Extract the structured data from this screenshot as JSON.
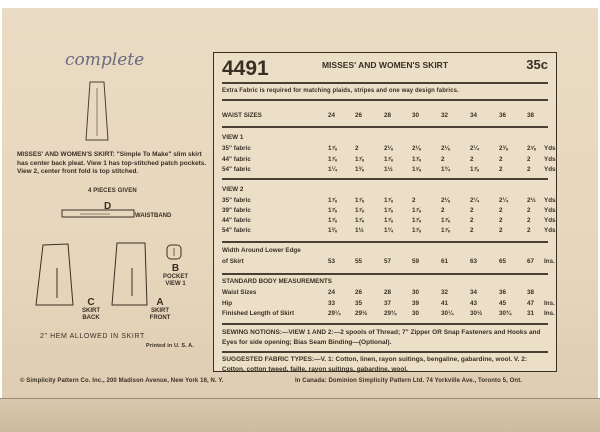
{
  "handwriting": "complete",
  "description": "MISSES' AND WOMEN'S SKIRT: \"Simple To Make\" slim skirt has center back pleat. View 1 has top-stitched patch pockets. View 2, center front fold is top stitched.",
  "pieces_given": "4 PIECES GIVEN",
  "pieces": [
    {
      "letter": "D",
      "name": "WAISTBAND"
    },
    {
      "letter": "B",
      "name": "POCKET VIEW 1"
    },
    {
      "letter": "C",
      "name": "SKIRT BACK"
    },
    {
      "letter": "A",
      "name": "SKIRT FRONT"
    }
  ],
  "hem_note": "2\" HEM ALLOWED IN SKIRT",
  "printed": "Printed in U. S. A.",
  "header": {
    "number": "4491",
    "title": "MISSES' AND WOMEN'S SKIRT",
    "price": "35c"
  },
  "extra_fabric": "Extra Fabric is required for matching plaids, stripes and one way design fabrics.",
  "sizes_label": "WAIST SIZES",
  "sizes": [
    "24",
    "26",
    "28",
    "30",
    "32",
    "34",
    "36",
    "38"
  ],
  "view1": {
    "label": "VIEW 1",
    "rows": [
      {
        "label": "35\" fabric",
        "values": [
          "1⅞",
          "2",
          "2⅛",
          "2⅛",
          "2⅛",
          "2¼",
          "2⅜",
          "2⅝"
        ],
        "unit": "Yds"
      },
      {
        "label": "44\" fabric",
        "values": [
          "1⅞",
          "1⅞",
          "1⅞",
          "1⅞",
          "2",
          "2",
          "2",
          "2"
        ],
        "unit": "Yds"
      },
      {
        "label": "54\" fabric",
        "values": [
          "1¼",
          "1⅜",
          "1½",
          "1⅝",
          "1¾",
          "1⅞",
          "2",
          "2"
        ],
        "unit": "Yds"
      }
    ]
  },
  "view2": {
    "label": "VIEW 2",
    "rows": [
      {
        "label": "35\" fabric",
        "values": [
          "1⅞",
          "1⅞",
          "1⅞",
          "2",
          "2⅛",
          "2¼",
          "2¼",
          "2½"
        ],
        "unit": "Yds."
      },
      {
        "label": "39\" fabric",
        "values": [
          "1⅞",
          "1⅞",
          "1⅞",
          "1⅞",
          "2",
          "2",
          "2",
          "2"
        ],
        "unit": "Yds."
      },
      {
        "label": "44\" fabric",
        "values": [
          "1⅞",
          "1⅞",
          "1⅞",
          "1⅞",
          "1⅞",
          "2",
          "2",
          "2"
        ],
        "unit": "Yds."
      },
      {
        "label": "54\" fabric",
        "values": [
          "1⅜",
          "1½",
          "1¾",
          "1⅞",
          "1⅞",
          "2",
          "2",
          "2"
        ],
        "unit": "Yds."
      }
    ]
  },
  "width": {
    "label1": "Width Around Lower Edge",
    "label2": "of Skirt",
    "values": [
      "53",
      "55",
      "57",
      "59",
      "61",
      "63",
      "65",
      "67"
    ],
    "unit": "Ins."
  },
  "body": {
    "label": "STANDARD BODY MEASUREMENTS",
    "rows": [
      {
        "label": "Waist Sizes",
        "values": [
          "24",
          "26",
          "28",
          "30",
          "32",
          "34",
          "36",
          "38"
        ],
        "unit": ""
      },
      {
        "label": "Hip",
        "values": [
          "33",
          "35",
          "37",
          "39",
          "41",
          "43",
          "45",
          "47"
        ],
        "unit": "Ins."
      },
      {
        "label": "Finished Length of Skirt",
        "values": [
          "29¼",
          "29½",
          "29¾",
          "30",
          "30¼",
          "30½",
          "30¾",
          "31"
        ],
        "unit": "Ins."
      }
    ]
  },
  "notions": "SEWING NOTIONS:—VIEW 1 AND 2:—2 spools of Thread; 7\" Zipper OR Snap Fasteners and Hooks and Eyes for side opening; Bias Seam Binding—(Optional).",
  "fabrics": "SUGGESTED FABRIC TYPES:—V. 1: Cotton, linen, rayon suitings, bengaline, gabardine, wool. V. 2: Cotton, cotton tweed, faille, rayon suitings, gabardine, wool.",
  "footer": {
    "left": "© Simplicity Pattern Co. Inc., 200 Madison Avenue, New York 16, N. Y.",
    "right": "In Canada: Dominion Simplicity Pattern Ltd. 74 Yorkville Ave., Toronto 5, Ont."
  }
}
